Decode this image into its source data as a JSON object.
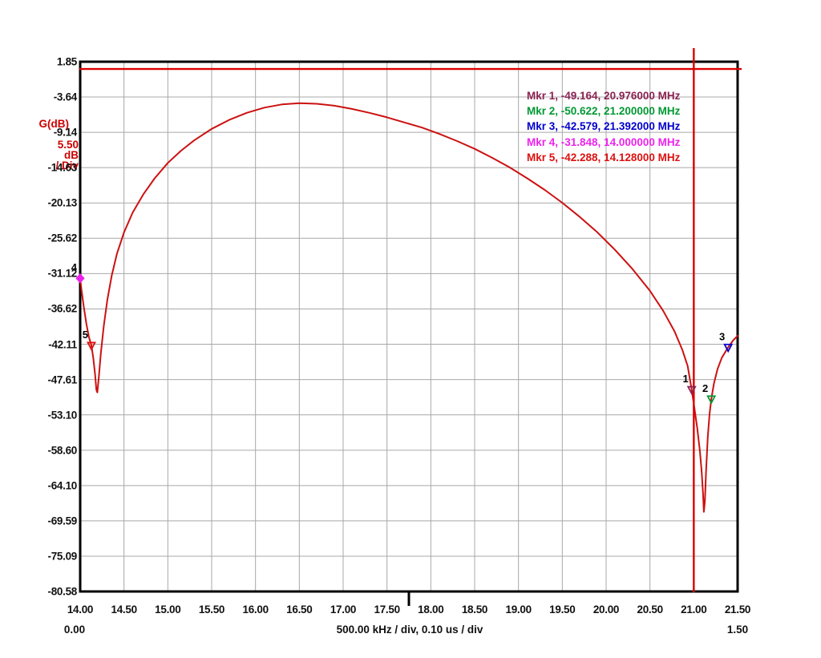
{
  "y_axis": {
    "gain_label": "G(dB)",
    "scale_lines": [
      "5.50",
      "dB",
      "/ Div"
    ],
    "tick_labels": [
      "1.85",
      "-3.64",
      "-9.14",
      "-14.63",
      "-20.13",
      "-25.62",
      "-31.12",
      "-36.62",
      "-42.11",
      "-47.61",
      "-53.10",
      "-58.60",
      "-64.10",
      "-69.59",
      "-75.09",
      "-80.58"
    ]
  },
  "x_axis": {
    "tick_labels": [
      "14.00",
      "14.50",
      "15.00",
      "15.50",
      "16.00",
      "16.50",
      "17.00",
      "17.50",
      "18.00",
      "18.50",
      "19.00",
      "19.50",
      "20.00",
      "20.50",
      "21.00",
      "21.50"
    ],
    "time_scale": {
      "left": "0.00",
      "right": "1.50",
      "caption": "500.00 kHz / div, 0.10 us / div"
    }
  },
  "legend": {
    "entries": [
      {
        "label": "Mkr 1, -49.164, 20.976000 MHz",
        "color": "#8b2252"
      },
      {
        "label": "Mkr 2, -50.622, 21.200000 MHz",
        "color": "#009933"
      },
      {
        "label": "Mkr 3, -42.579, 21.392000 MHz",
        "color": "#0000cc"
      },
      {
        "label": "Mkr 4, -31.848, 14.000000 MHz",
        "color": "#ee22ee"
      },
      {
        "label": "Mkr 5, -42.288, 14.128000 MHz",
        "color": "#dd1111"
      }
    ]
  },
  "chart_data": {
    "type": "line",
    "title": "",
    "xlabel": "500.00 kHz / div, 0.10 us / div",
    "ylabel": "G(dB), 5.50 dB / Div",
    "xlim": [
      14.0,
      21.5
    ],
    "ylim": [
      -80.58,
      1.85
    ],
    "x_ticks": [
      14.0,
      14.5,
      15.0,
      15.5,
      16.0,
      16.5,
      17.0,
      17.5,
      18.0,
      18.5,
      19.0,
      19.5,
      20.0,
      20.5,
      21.0,
      21.5
    ],
    "y_ticks": [
      1.85,
      -3.64,
      -9.14,
      -14.63,
      -20.13,
      -25.62,
      -31.12,
      -36.62,
      -42.11,
      -47.61,
      -53.1,
      -58.6,
      -64.1,
      -69.59,
      -75.09,
      -80.58
    ],
    "grid": true,
    "legend_position": "upper-right-inside",
    "colors": {
      "trace": "#cc1111",
      "cursor": "#dd0000",
      "grid": "#a8a8a8",
      "axis": "#000000"
    },
    "series": [
      {
        "name": "G(dB)",
        "points": [
          [
            14.0,
            -31.85
          ],
          [
            14.015,
            -33.6
          ],
          [
            14.04,
            -36.2
          ],
          [
            14.07,
            -38.9
          ],
          [
            14.1,
            -41.0
          ],
          [
            14.128,
            -42.288
          ],
          [
            14.15,
            -44.3
          ],
          [
            14.17,
            -46.8
          ],
          [
            14.185,
            -49.2
          ],
          [
            14.196,
            -49.6
          ],
          [
            14.21,
            -47.6
          ],
          [
            14.235,
            -43.6
          ],
          [
            14.27,
            -39.2
          ],
          [
            14.31,
            -35.2
          ],
          [
            14.36,
            -31.4
          ],
          [
            14.42,
            -28.0
          ],
          [
            14.5,
            -24.7
          ],
          [
            14.6,
            -21.6
          ],
          [
            14.72,
            -18.8
          ],
          [
            14.85,
            -16.3
          ],
          [
            15.0,
            -13.9
          ],
          [
            15.15,
            -12.0
          ],
          [
            15.3,
            -10.4
          ],
          [
            15.5,
            -8.6
          ],
          [
            15.7,
            -7.2
          ],
          [
            15.9,
            -6.1
          ],
          [
            16.1,
            -5.3
          ],
          [
            16.3,
            -4.8
          ],
          [
            16.5,
            -4.6
          ],
          [
            16.7,
            -4.7
          ],
          [
            16.9,
            -5.0
          ],
          [
            17.1,
            -5.5
          ],
          [
            17.3,
            -6.1
          ],
          [
            17.5,
            -6.8
          ],
          [
            17.7,
            -7.6
          ],
          [
            17.9,
            -8.4
          ],
          [
            18.1,
            -9.4
          ],
          [
            18.3,
            -10.5
          ],
          [
            18.5,
            -11.7
          ],
          [
            18.7,
            -13.1
          ],
          [
            18.9,
            -14.6
          ],
          [
            19.1,
            -16.3
          ],
          [
            19.3,
            -18.1
          ],
          [
            19.5,
            -20.1
          ],
          [
            19.7,
            -22.3
          ],
          [
            19.9,
            -24.7
          ],
          [
            20.1,
            -27.4
          ],
          [
            20.3,
            -30.4
          ],
          [
            20.5,
            -33.8
          ],
          [
            20.65,
            -36.9
          ],
          [
            20.78,
            -40.1
          ],
          [
            20.87,
            -43.0
          ],
          [
            20.93,
            -45.5
          ],
          [
            20.976,
            -49.164
          ],
          [
            21.01,
            -52.3
          ],
          [
            21.04,
            -55.2
          ],
          [
            21.07,
            -58.8
          ],
          [
            21.09,
            -62.0
          ],
          [
            21.105,
            -65.2
          ],
          [
            21.115,
            -68.2
          ],
          [
            21.127,
            -66.5
          ],
          [
            21.14,
            -62.0
          ],
          [
            21.16,
            -56.5
          ],
          [
            21.18,
            -53.0
          ],
          [
            21.2,
            -50.622
          ],
          [
            21.23,
            -48.2
          ],
          [
            21.27,
            -46.0
          ],
          [
            21.32,
            -44.2
          ],
          [
            21.392,
            -42.579
          ],
          [
            21.45,
            -41.5
          ],
          [
            21.5,
            -40.8
          ]
        ]
      }
    ],
    "markers": [
      {
        "num": "1",
        "freq": 20.976,
        "db": -49.164,
        "color": "#8b2252",
        "shape": "triangle"
      },
      {
        "num": "2",
        "freq": 21.2,
        "db": -50.622,
        "color": "#009933",
        "shape": "triangle"
      },
      {
        "num": "3",
        "freq": 21.392,
        "db": -42.579,
        "color": "#0000cc",
        "shape": "triangle"
      },
      {
        "num": "4",
        "freq": 14.0,
        "db": -31.848,
        "color": "#ee22ee",
        "shape": "diamond"
      },
      {
        "num": "5",
        "freq": 14.128,
        "db": -42.288,
        "color": "#dd1111",
        "shape": "triangle"
      }
    ],
    "cursors": {
      "vertical_mhz": 21.0,
      "horizontal_db": 0.72
    },
    "bottom_tick_frac": 0.5
  }
}
